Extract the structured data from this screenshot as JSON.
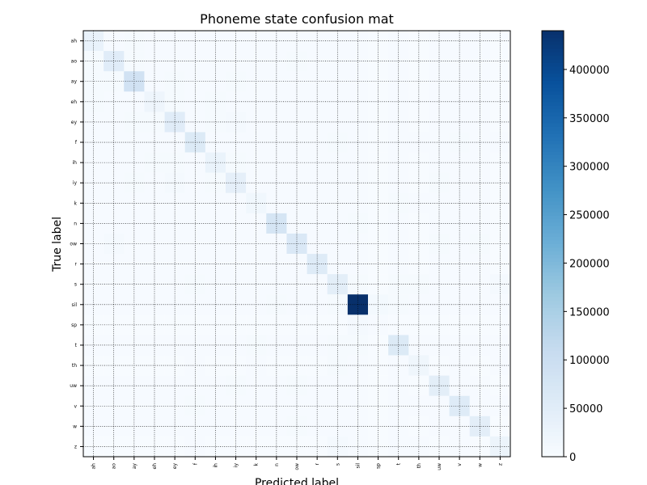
{
  "chart_data": {
    "type": "heatmap",
    "title": "Phoneme state confusion mat",
    "xlabel": "Predicted label",
    "ylabel": "True label",
    "x_categories": [
      "ah",
      "ao",
      "ay",
      "eh",
      "ey",
      "f",
      "ih",
      "iy",
      "k",
      "n",
      "ow",
      "r",
      "s",
      "sil",
      "sp",
      "t",
      "th",
      "uw",
      "v",
      "w",
      "z"
    ],
    "y_categories": [
      "ah",
      "ao",
      "ay",
      "eh",
      "ey",
      "f",
      "ih",
      "iy",
      "k",
      "n",
      "ow",
      "r",
      "s",
      "sil",
      "sp",
      "t",
      "th",
      "uw",
      "v",
      "w",
      "z"
    ],
    "values": [
      [
        30000,
        3000,
        4000,
        3000,
        3000,
        2000,
        3000,
        3000,
        2000,
        2000,
        3000,
        3000,
        2000,
        3000,
        1000,
        2000,
        1000,
        3000,
        2000,
        2000,
        1000
      ],
      [
        4000,
        50000,
        4000,
        3000,
        3000,
        2000,
        3000,
        3000,
        2000,
        2000,
        5000,
        3000,
        2000,
        3000,
        1000,
        2000,
        1000,
        3000,
        2000,
        3000,
        1000
      ],
      [
        4000,
        4000,
        85000,
        3000,
        5000,
        2000,
        3000,
        4000,
        2000,
        2000,
        3000,
        3000,
        2000,
        3000,
        1000,
        2000,
        1000,
        3000,
        2000,
        2000,
        1000
      ],
      [
        4000,
        3000,
        3000,
        20000,
        4000,
        2000,
        5000,
        3000,
        2000,
        2000,
        3000,
        3000,
        2000,
        3000,
        1000,
        2000,
        1000,
        3000,
        2000,
        2000,
        1000
      ],
      [
        3000,
        3000,
        5000,
        4000,
        50000,
        2000,
        4000,
        6000,
        2000,
        2000,
        3000,
        3000,
        2000,
        3000,
        1000,
        2000,
        1000,
        3000,
        2000,
        2000,
        1000
      ],
      [
        2000,
        2000,
        2000,
        2000,
        2000,
        60000,
        2000,
        2000,
        2000,
        2000,
        2000,
        2000,
        4000,
        3000,
        1000,
        3000,
        3000,
        2000,
        4000,
        2000,
        2000
      ],
      [
        3000,
        3000,
        3000,
        5000,
        4000,
        2000,
        28000,
        5000,
        2000,
        2000,
        3000,
        3000,
        2000,
        3000,
        1000,
        2000,
        1000,
        3000,
        2000,
        2000,
        1000
      ],
      [
        3000,
        3000,
        4000,
        3000,
        6000,
        2000,
        5000,
        40000,
        2000,
        2000,
        3000,
        3000,
        2000,
        3000,
        1000,
        2000,
        1000,
        4000,
        2000,
        2000,
        1000
      ],
      [
        2000,
        2000,
        2000,
        2000,
        2000,
        2000,
        2000,
        2000,
        15000,
        2000,
        2000,
        2000,
        3000,
        3000,
        1000,
        5000,
        2000,
        2000,
        2000,
        2000,
        1000
      ],
      [
        2000,
        2000,
        2000,
        2000,
        2000,
        2000,
        2000,
        2000,
        2000,
        75000,
        2000,
        3000,
        2000,
        4000,
        1000,
        2000,
        1000,
        2000,
        2000,
        2000,
        1000
      ],
      [
        3000,
        6000,
        3000,
        3000,
        3000,
        2000,
        3000,
        3000,
        2000,
        2000,
        65000,
        3000,
        2000,
        3000,
        1000,
        2000,
        1000,
        4000,
        2000,
        4000,
        1000
      ],
      [
        3000,
        3000,
        3000,
        3000,
        3000,
        2000,
        3000,
        3000,
        2000,
        3000,
        3000,
        55000,
        2000,
        3000,
        1000,
        2000,
        1000,
        3000,
        2000,
        3000,
        1000
      ],
      [
        2000,
        2000,
        2000,
        2000,
        2000,
        4000,
        2000,
        2000,
        3000,
        2000,
        2000,
        2000,
        45000,
        4000,
        1000,
        4000,
        4000,
        2000,
        2000,
        2000,
        6000
      ],
      [
        3000,
        3000,
        3000,
        3000,
        3000,
        3000,
        3000,
        3000,
        3000,
        4000,
        3000,
        3000,
        4000,
        440000,
        8000,
        4000,
        2000,
        3000,
        3000,
        3000,
        3000
      ],
      [
        1000,
        1000,
        1000,
        1000,
        1000,
        1000,
        1000,
        1000,
        1000,
        1000,
        1000,
        1000,
        1000,
        6000,
        3000,
        1000,
        1000,
        1000,
        1000,
        1000,
        1000
      ],
      [
        2000,
        2000,
        2000,
        2000,
        2000,
        3000,
        2000,
        2000,
        5000,
        2000,
        2000,
        2000,
        4000,
        5000,
        1000,
        60000,
        3000,
        2000,
        2000,
        2000,
        2000
      ],
      [
        1000,
        1000,
        1000,
        1000,
        1000,
        3000,
        1000,
        1000,
        2000,
        1000,
        1000,
        1000,
        4000,
        2000,
        1000,
        3000,
        18000,
        1000,
        2000,
        1000,
        2000
      ],
      [
        3000,
        3000,
        3000,
        3000,
        3000,
        2000,
        3000,
        4000,
        2000,
        2000,
        4000,
        3000,
        2000,
        3000,
        1000,
        2000,
        1000,
        45000,
        2000,
        3000,
        1000
      ],
      [
        2000,
        2000,
        2000,
        2000,
        2000,
        4000,
        2000,
        2000,
        2000,
        2000,
        2000,
        2000,
        2000,
        3000,
        1000,
        2000,
        2000,
        2000,
        55000,
        3000,
        2000
      ],
      [
        2000,
        3000,
        2000,
        2000,
        2000,
        2000,
        2000,
        2000,
        2000,
        2000,
        4000,
        3000,
        2000,
        3000,
        1000,
        2000,
        1000,
        3000,
        3000,
        45000,
        1000
      ],
      [
        1000,
        1000,
        1000,
        1000,
        1000,
        2000,
        1000,
        1000,
        1000,
        1000,
        1000,
        1000,
        6000,
        3000,
        1000,
        2000,
        2000,
        1000,
        2000,
        1000,
        25000
      ]
    ],
    "vmin": 0,
    "vmax": 440000,
    "colormap": "Blues",
    "grid": true,
    "grid_style": "dotted",
    "colorbar": {
      "ticks": [
        0,
        50000,
        100000,
        150000,
        200000,
        250000,
        300000,
        350000,
        400000
      ],
      "tick_labels": [
        "0",
        "50000",
        "100000",
        "150000",
        "200000",
        "250000",
        "300000",
        "350000",
        "400000"
      ],
      "position": "right"
    }
  }
}
